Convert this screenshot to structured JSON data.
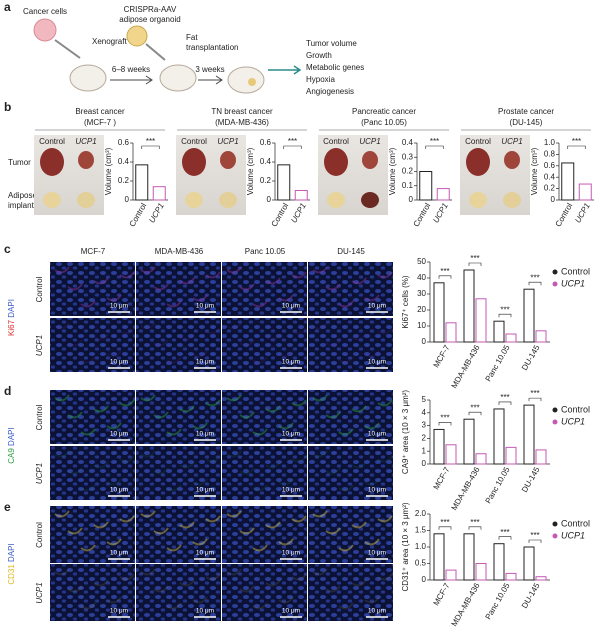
{
  "panel_labels": [
    "a",
    "b",
    "c",
    "d",
    "e"
  ],
  "schematic": {
    "cells": "Cancer cells",
    "xenograft": "Xenograft",
    "organoid": [
      "CRISPRa-AAV",
      "adipose organoid"
    ],
    "transplant": [
      "Fat",
      "transplantation"
    ],
    "interval_1": "6–8 weeks",
    "interval_2": "3 weeks",
    "readouts": [
      "Tumor volume",
      "Growth",
      "Metabolic genes",
      "Hypoxia",
      "Angiogenesis"
    ]
  },
  "photos": {
    "cancers": [
      {
        "name": "Breast cancer",
        "line": "(MCF-7 )"
      },
      {
        "name": "TN breast cancer",
        "line": "(MDA-MB-436)"
      },
      {
        "name": "Pancreatic cancer",
        "line": "(Panc 10.05)"
      },
      {
        "name": "Prostate cancer",
        "line": "(DU-145)"
      }
    ],
    "columns": [
      "Control",
      "UCP1"
    ],
    "rows": [
      [
        "Tumor"
      ],
      [
        "Adipose",
        "implant"
      ]
    ]
  },
  "micrographs": {
    "cell_lines": [
      "MCF-7",
      "MDA-MB-436",
      "Panc 10.05",
      "DU-145"
    ],
    "stains": [
      [
        "Ki67",
        "DAPI"
      ],
      [
        "CA9",
        "DAPI"
      ],
      [
        "CD31",
        "DAPI"
      ]
    ],
    "rows": [
      "Control",
      "UCP1"
    ],
    "scale_bar": "10 μm"
  },
  "chart_data": [
    {
      "type": "bar",
      "ylabel": "Volume (cm³)",
      "categories": [
        "Control",
        "UCP1"
      ],
      "values": [
        0.37,
        0.14
      ],
      "colors": [
        "#222222",
        "#c45ab3"
      ],
      "ylim": [
        0,
        0.6
      ],
      "yticks": [
        0,
        0.2,
        0.4,
        0.6
      ],
      "annotations": [
        "***"
      ]
    },
    {
      "type": "bar",
      "ylabel": "Volume (cm³)",
      "categories": [
        "Control",
        "UCP1"
      ],
      "values": [
        0.37,
        0.1
      ],
      "colors": [
        "#222222",
        "#c45ab3"
      ],
      "ylim": [
        0,
        0.6
      ],
      "yticks": [
        0,
        0.2,
        0.4,
        0.6
      ],
      "annotations": [
        "***"
      ]
    },
    {
      "type": "bar",
      "ylabel": "Volume (cm³)",
      "categories": [
        "Control",
        "UCP1"
      ],
      "values": [
        0.2,
        0.08
      ],
      "colors": [
        "#222222",
        "#c45ab3"
      ],
      "ylim": [
        0,
        0.4
      ],
      "yticks": [
        0,
        0.1,
        0.2,
        0.3,
        0.4
      ],
      "annotations": [
        "***"
      ]
    },
    {
      "type": "bar",
      "ylabel": "Volume (cm³)",
      "categories": [
        "Control",
        "UCP1"
      ],
      "values": [
        0.65,
        0.28
      ],
      "colors": [
        "#222222",
        "#c45ab3"
      ],
      "ylim": [
        0,
        1
      ],
      "yticks": [
        0,
        0.2,
        0.4,
        0.6,
        0.8,
        {
          "value": 1,
          "label": "1.0"
        }
      ],
      "annotations": [
        "***"
      ]
    },
    {
      "type": "grouped_bar",
      "ylabel": "Ki67⁺ cells (%)",
      "categories": [
        "MCF-7",
        "MDA-MB-436",
        "Panc 10.05",
        "DU-145"
      ],
      "series": [
        {
          "name": "Control",
          "color": "#222222",
          "values": [
            37,
            45,
            13,
            33
          ]
        },
        {
          "name": "UCP1",
          "color": "#c45ab3",
          "values": [
            12,
            27,
            5,
            7
          ]
        }
      ],
      "ylim": [
        0,
        50
      ],
      "yticks": [
        0,
        10,
        20,
        30,
        40,
        50
      ],
      "annotations": [
        "***",
        "***",
        "***",
        "***"
      ]
    },
    {
      "type": "grouped_bar",
      "ylabel": "CA9⁺ area (10 × 3 μm²)",
      "categories": [
        "MCF-7",
        "MDA-MB-436",
        "Panc 10.05",
        "DU-145"
      ],
      "series": [
        {
          "name": "Control",
          "color": "#222222",
          "values": [
            2.7,
            3.5,
            4.3,
            4.6
          ]
        },
        {
          "name": "UCP1",
          "color": "#c45ab3",
          "values": [
            1.5,
            0.8,
            1.3,
            1.1
          ]
        }
      ],
      "ylim": [
        0,
        5
      ],
      "yticks": [
        0,
        1,
        2,
        3,
        4,
        5
      ],
      "annotations": [
        "***",
        "***",
        "***",
        "***"
      ]
    },
    {
      "type": "grouped_bar",
      "ylabel": "CD31⁺ area (10 × 3 μm²)",
      "categories": [
        "MCF-7",
        "MDA-MB-436",
        "Panc 10.05",
        "DU-145"
      ],
      "series": [
        {
          "name": "Control",
          "color": "#222222",
          "values": [
            1.4,
            1.4,
            1.1,
            1
          ]
        },
        {
          "name": "UCP1",
          "color": "#c45ab3",
          "values": [
            0.3,
            0.5,
            0.2,
            0.1
          ]
        }
      ],
      "ylim": [
        0,
        2
      ],
      "yticks": [
        0,
        {
          "value": 0.5,
          "label": "0.5"
        },
        {
          "value": 1,
          "label": "1.0"
        },
        {
          "value": 1.5,
          "label": "1.5"
        },
        {
          "value": 2,
          "label": "2.0"
        }
      ],
      "annotations": [
        "***",
        "***",
        "***",
        "***"
      ]
    }
  ]
}
